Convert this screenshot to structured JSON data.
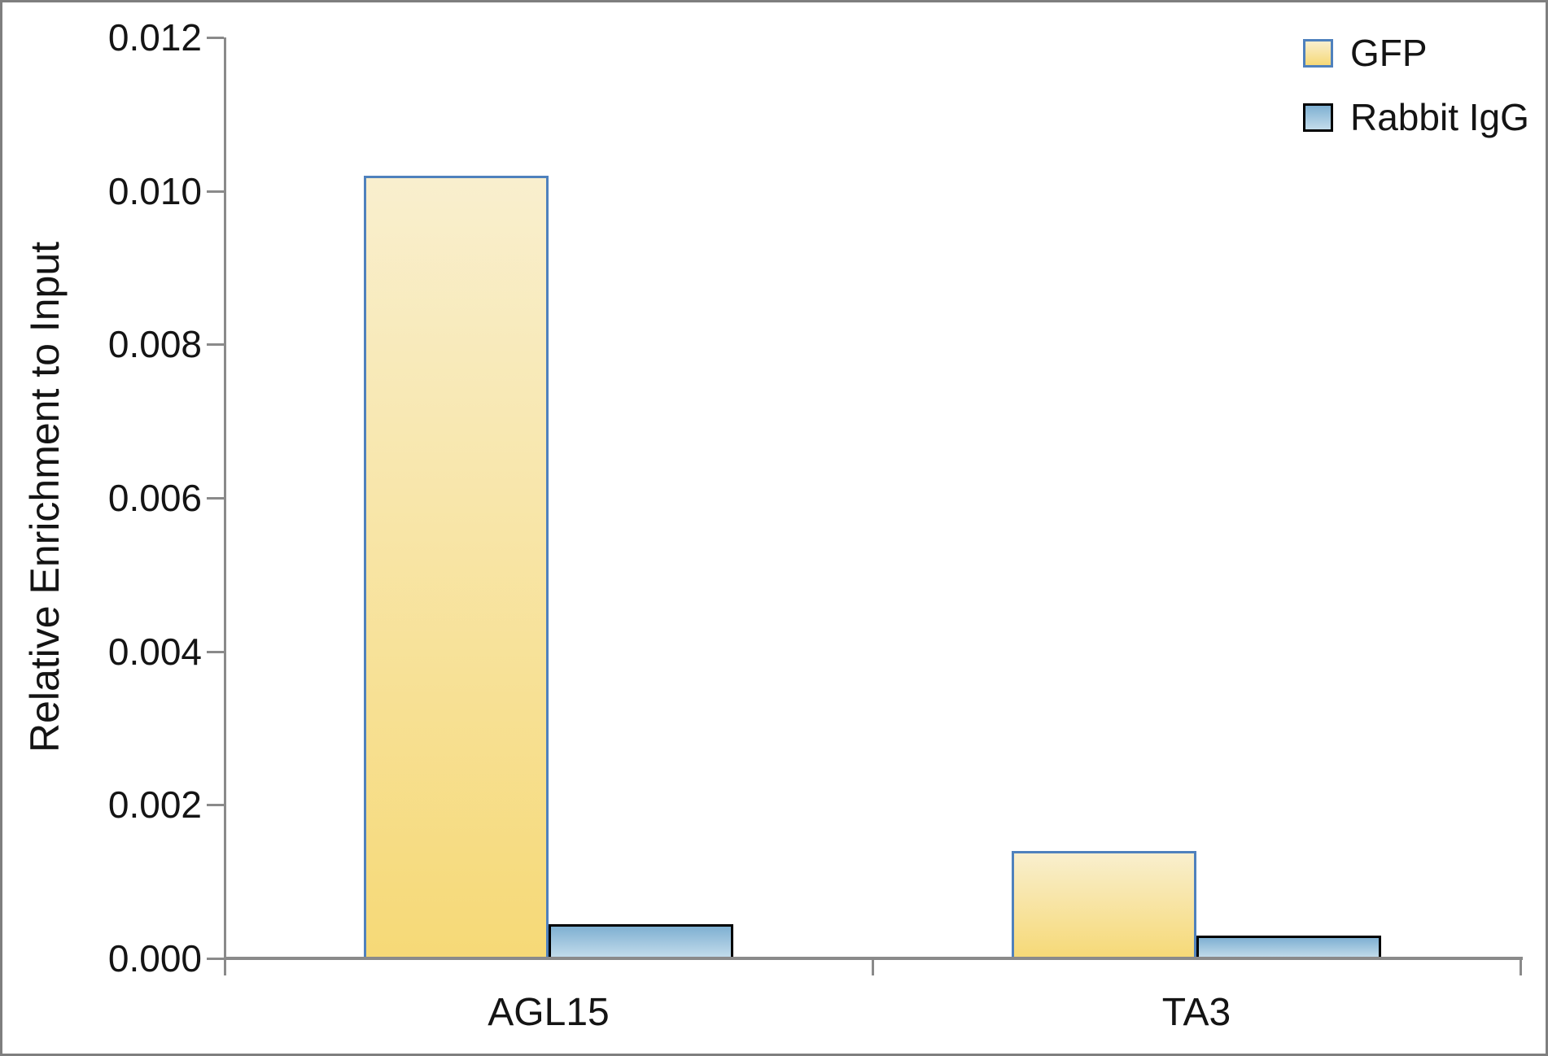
{
  "chart_data": {
    "type": "bar",
    "title": "",
    "xlabel": "",
    "ylabel": "Relative Enrichment to Input",
    "categories": [
      "AGL15",
      "TA3"
    ],
    "series": [
      {
        "name": "GFP",
        "values": [
          0.0102,
          0.0014
        ]
      },
      {
        "name": "Rabbit IgG",
        "values": [
          0.00045,
          0.0003
        ]
      }
    ],
    "ylim": [
      0,
      0.012
    ],
    "ytick_step": 0.002,
    "ytick_labels": [
      "0.000",
      "0.002",
      "0.004",
      "0.006",
      "0.008",
      "0.010",
      "0.012"
    ],
    "grid": false,
    "legend_position": "top-right"
  },
  "legend": {
    "items": [
      {
        "label": "GFP",
        "fill_top": "#F9EFCE",
        "fill_bottom": "#F6D977",
        "border": "#4F81BD"
      },
      {
        "label": "Rabbit IgG",
        "fill_top": "#7FB0D2",
        "fill_bottom": "#C3DCEB",
        "border": "#000000"
      }
    ]
  },
  "colors": {
    "axis": "#8A8A8A",
    "frame_border": "#7F7F7F",
    "text": "#141414",
    "gfp_bar_top": "#F9EFCE",
    "gfp_bar_bottom": "#F6D977",
    "gfp_bar_border": "#4F81BD",
    "igg_bar_top": "#7FB0D2",
    "igg_bar_bottom": "#C3DCEB",
    "igg_bar_border": "#000000"
  }
}
